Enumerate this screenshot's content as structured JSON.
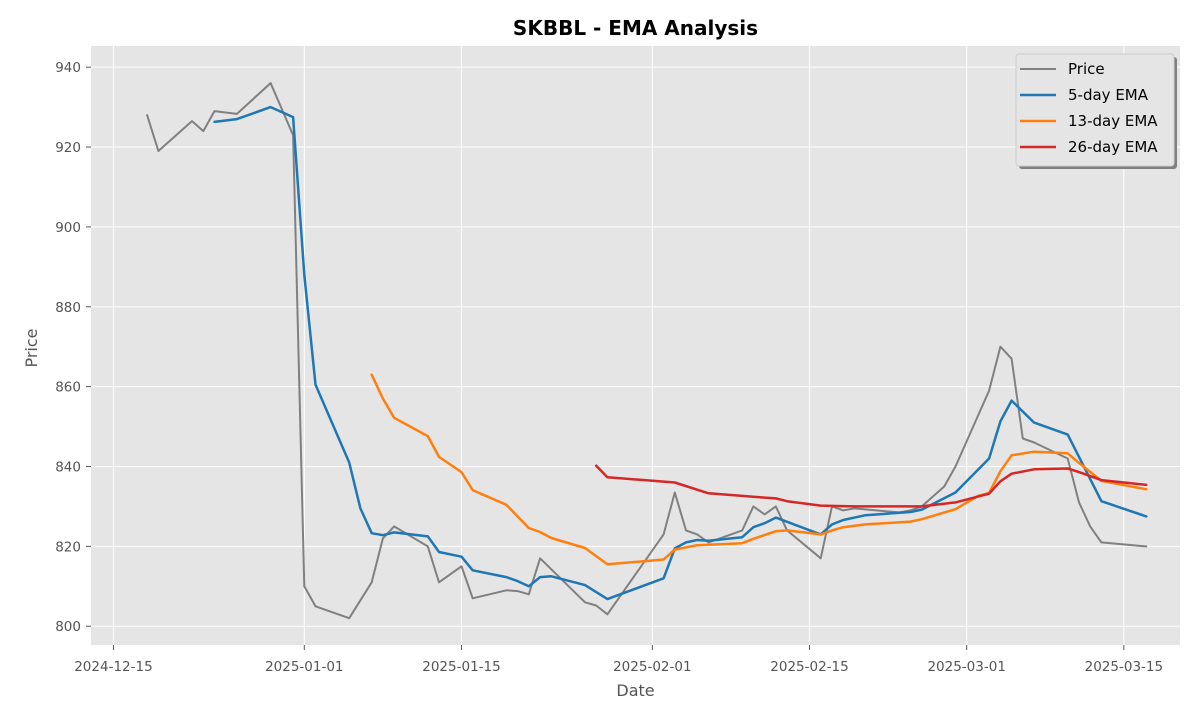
{
  "chart_data": {
    "type": "line",
    "title": "SKBBL - EMA Analysis",
    "xlabel": "Date",
    "ylabel": "Price",
    "x_range": [
      "2024-12-13",
      "2025-03-20"
    ],
    "ylim": [
      795.3,
      945.3
    ],
    "x_ticks": [
      "2024-12-15",
      "2025-01-01",
      "2025-01-15",
      "2025-02-01",
      "2025-02-15",
      "2025-03-01",
      "2025-03-15"
    ],
    "y_ticks": [
      800,
      820,
      840,
      860,
      880,
      900,
      920,
      940
    ],
    "grid": true,
    "legend_position": "top-right",
    "series": [
      {
        "name": "Price",
        "color": "#808080",
        "points": [
          [
            "2024-12-18",
            928
          ],
          [
            "2024-12-19",
            919
          ],
          [
            "2024-12-22",
            926.5
          ],
          [
            "2024-12-23",
            924
          ],
          [
            "2024-12-24",
            929
          ],
          [
            "2024-12-26",
            928.3
          ],
          [
            "2024-12-29",
            936
          ],
          [
            "2024-12-31",
            923
          ],
          [
            "2025-01-01",
            810
          ],
          [
            "2025-01-02",
            805
          ],
          [
            "2025-01-05",
            802
          ],
          [
            "2025-01-07",
            811
          ],
          [
            "2025-01-08",
            822
          ],
          [
            "2025-01-09",
            825
          ],
          [
            "2025-01-12",
            820
          ],
          [
            "2025-01-13",
            811
          ],
          [
            "2025-01-15",
            815
          ],
          [
            "2025-01-16",
            807
          ],
          [
            "2025-01-19",
            809
          ],
          [
            "2025-01-20",
            808.8
          ],
          [
            "2025-01-21",
            808
          ],
          [
            "2025-01-22",
            817
          ],
          [
            "2025-01-26",
            806
          ],
          [
            "2025-01-27",
            805.2
          ],
          [
            "2025-01-28",
            803
          ],
          [
            "2025-02-02",
            823
          ],
          [
            "2025-02-03",
            833.5
          ],
          [
            "2025-02-04",
            824
          ],
          [
            "2025-02-05",
            823
          ],
          [
            "2025-02-06",
            821
          ],
          [
            "2025-02-09",
            824
          ],
          [
            "2025-02-10",
            830
          ],
          [
            "2025-02-11",
            828
          ],
          [
            "2025-02-12",
            830
          ],
          [
            "2025-02-13",
            824
          ],
          [
            "2025-02-16",
            817
          ],
          [
            "2025-02-17",
            830
          ],
          [
            "2025-02-18",
            829
          ],
          [
            "2025-02-19",
            829.5
          ],
          [
            "2025-02-23",
            828.5
          ],
          [
            "2025-02-24",
            829
          ],
          [
            "2025-02-25",
            830
          ],
          [
            "2025-02-27",
            835
          ],
          [
            "2025-02-28",
            840
          ],
          [
            "2025-03-03",
            859
          ],
          [
            "2025-03-04",
            870
          ],
          [
            "2025-03-05",
            867
          ],
          [
            "2025-03-06",
            847
          ],
          [
            "2025-03-07",
            846
          ],
          [
            "2025-03-10",
            842
          ],
          [
            "2025-03-11",
            831
          ],
          [
            "2025-03-12",
            825
          ],
          [
            "2025-03-13",
            821
          ],
          [
            "2025-03-17",
            820
          ]
        ]
      },
      {
        "name": "5-day EMA",
        "color": "#1f77b4",
        "points": [
          [
            "2024-12-24",
            926.3
          ],
          [
            "2024-12-26",
            927
          ],
          [
            "2024-12-29",
            930
          ],
          [
            "2024-12-31",
            927.5
          ],
          [
            "2025-01-01",
            888
          ],
          [
            "2025-01-02",
            860.5
          ],
          [
            "2025-01-05",
            841
          ],
          [
            "2025-01-06",
            829.5
          ],
          [
            "2025-01-07",
            823.3
          ],
          [
            "2025-01-08",
            822.8
          ],
          [
            "2025-01-09",
            823.5
          ],
          [
            "2025-01-12",
            822.5
          ],
          [
            "2025-01-13",
            818.6
          ],
          [
            "2025-01-15",
            817.4
          ],
          [
            "2025-01-16",
            814
          ],
          [
            "2025-01-19",
            812.3
          ],
          [
            "2025-01-20",
            811.3
          ],
          [
            "2025-01-21",
            810
          ],
          [
            "2025-01-22",
            812.3
          ],
          [
            "2025-01-23",
            812.5
          ],
          [
            "2025-01-26",
            810.3
          ],
          [
            "2025-01-28",
            806.8
          ],
          [
            "2025-02-02",
            812
          ],
          [
            "2025-02-03",
            819.5
          ],
          [
            "2025-02-04",
            821
          ],
          [
            "2025-02-05",
            821.6
          ],
          [
            "2025-02-06",
            821.4
          ],
          [
            "2025-02-09",
            822.3
          ],
          [
            "2025-02-10",
            824.8
          ],
          [
            "2025-02-11",
            825.8
          ],
          [
            "2025-02-12",
            827.2
          ],
          [
            "2025-02-16",
            823
          ],
          [
            "2025-02-17",
            825.5
          ],
          [
            "2025-02-18",
            826.6
          ],
          [
            "2025-02-20",
            827.8
          ],
          [
            "2025-02-24",
            828.6
          ],
          [
            "2025-02-25",
            829.2
          ],
          [
            "2025-02-28",
            833.5
          ],
          [
            "2025-03-03",
            842
          ],
          [
            "2025-03-04",
            851.3
          ],
          [
            "2025-03-05",
            856.5
          ],
          [
            "2025-03-07",
            851
          ],
          [
            "2025-03-10",
            848
          ],
          [
            "2025-03-13",
            831.3
          ],
          [
            "2025-03-17",
            827.5
          ]
        ]
      },
      {
        "name": "13-day EMA",
        "color": "#ff7f0e",
        "points": [
          [
            "2025-01-07",
            863
          ],
          [
            "2025-01-08",
            857
          ],
          [
            "2025-01-09",
            852.2
          ],
          [
            "2025-01-12",
            847.6
          ],
          [
            "2025-01-13",
            842.4
          ],
          [
            "2025-01-15",
            838.6
          ],
          [
            "2025-01-16",
            834.1
          ],
          [
            "2025-01-19",
            830.4
          ],
          [
            "2025-01-20",
            827.5
          ],
          [
            "2025-01-21",
            824.6
          ],
          [
            "2025-01-22",
            823.6
          ],
          [
            "2025-01-23",
            822.1
          ],
          [
            "2025-01-26",
            819.6
          ],
          [
            "2025-01-28",
            815.5
          ],
          [
            "2025-02-02",
            816.7
          ],
          [
            "2025-02-03",
            819.2
          ],
          [
            "2025-02-05",
            820.3
          ],
          [
            "2025-02-09",
            820.8
          ],
          [
            "2025-02-10",
            821.9
          ],
          [
            "2025-02-12",
            823.8
          ],
          [
            "2025-02-13",
            824
          ],
          [
            "2025-02-16",
            823
          ],
          [
            "2025-02-17",
            824
          ],
          [
            "2025-02-18",
            824.8
          ],
          [
            "2025-02-20",
            825.5
          ],
          [
            "2025-02-24",
            826.2
          ],
          [
            "2025-02-25",
            826.8
          ],
          [
            "2025-02-28",
            829.3
          ],
          [
            "2025-03-02",
            832.6
          ],
          [
            "2025-03-03",
            833.4
          ],
          [
            "2025-03-04",
            838.8
          ],
          [
            "2025-03-05",
            842.8
          ],
          [
            "2025-03-07",
            843.7
          ],
          [
            "2025-03-10",
            843.3
          ],
          [
            "2025-03-11",
            840.9
          ],
          [
            "2025-03-13",
            836.4
          ],
          [
            "2025-03-17",
            834.3
          ]
        ]
      },
      {
        "name": "26-day EMA",
        "color": "#d62728",
        "points": [
          [
            "2025-01-27",
            840.2
          ],
          [
            "2025-01-28",
            837.3
          ],
          [
            "2025-02-03",
            836
          ],
          [
            "2025-02-06",
            833.3
          ],
          [
            "2025-02-11",
            832.2
          ],
          [
            "2025-02-12",
            832
          ],
          [
            "2025-02-13",
            831.3
          ],
          [
            "2025-02-16",
            830.2
          ],
          [
            "2025-02-19",
            830
          ],
          [
            "2025-02-25",
            830
          ],
          [
            "2025-02-28",
            831
          ],
          [
            "2025-03-03",
            833.2
          ],
          [
            "2025-03-04",
            836.3
          ],
          [
            "2025-03-05",
            838.2
          ],
          [
            "2025-03-07",
            839.3
          ],
          [
            "2025-03-10",
            839.5
          ],
          [
            "2025-03-11",
            838.6
          ],
          [
            "2025-03-13",
            836.6
          ],
          [
            "2025-03-17",
            835.4
          ]
        ]
      }
    ]
  }
}
